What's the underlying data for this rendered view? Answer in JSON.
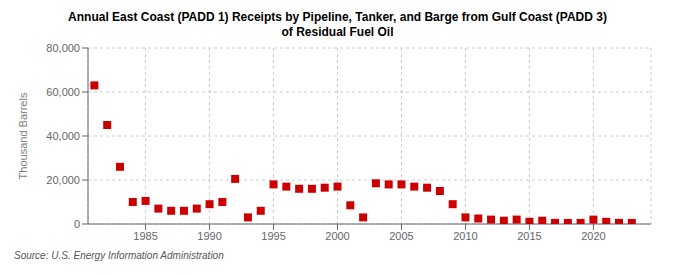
{
  "chart_data": {
    "type": "scatter",
    "title": "Annual East Coast (PADD 1) Receipts by Pipeline, Tanker, and Barge from Gulf Coast (PADD 3)\nof Residual Fuel Oil",
    "y_label": "Thousand Barrels",
    "source": "Source: U.S. Energy Information Administration",
    "x": [
      1981,
      1982,
      1983,
      1984,
      1985,
      1986,
      1987,
      1988,
      1989,
      1990,
      1991,
      1992,
      1993,
      1994,
      1995,
      1996,
      1997,
      1998,
      1999,
      2000,
      2001,
      2002,
      2003,
      2004,
      2005,
      2006,
      2007,
      2008,
      2009,
      2010,
      2011,
      2012,
      2013,
      2014,
      2015,
      2016,
      2017,
      2018,
      2019,
      2020,
      2021,
      2022,
      2023
    ],
    "values": [
      63000,
      45000,
      26000,
      10000,
      10500,
      7000,
      6000,
      6000,
      7000,
      9000,
      10000,
      20500,
      3000,
      6000,
      18000,
      17000,
      16000,
      16000,
      16500,
      17000,
      8500,
      3000,
      18500,
      18000,
      18000,
      17000,
      16500,
      15000,
      9000,
      3000,
      2500,
      2000,
      1500,
      2000,
      1000,
      1500,
      500,
      500,
      500,
      2000,
      1000,
      500,
      500
    ],
    "color": "#cc0000",
    "marker": "square",
    "xlim": [
      1980.5,
      2024.5
    ],
    "xticks": [
      1985,
      1990,
      1995,
      2000,
      2005,
      2010,
      2015,
      2020
    ],
    "ylim": [
      0,
      80000
    ],
    "yticks": [
      0,
      {
        "value": 20000,
        "label": "20,000"
      },
      {
        "value": 40000,
        "label": "40,000"
      },
      {
        "value": 60000,
        "label": "60,000"
      },
      {
        "value": 80000,
        "label": "80,000"
      }
    ],
    "grid": true
  }
}
